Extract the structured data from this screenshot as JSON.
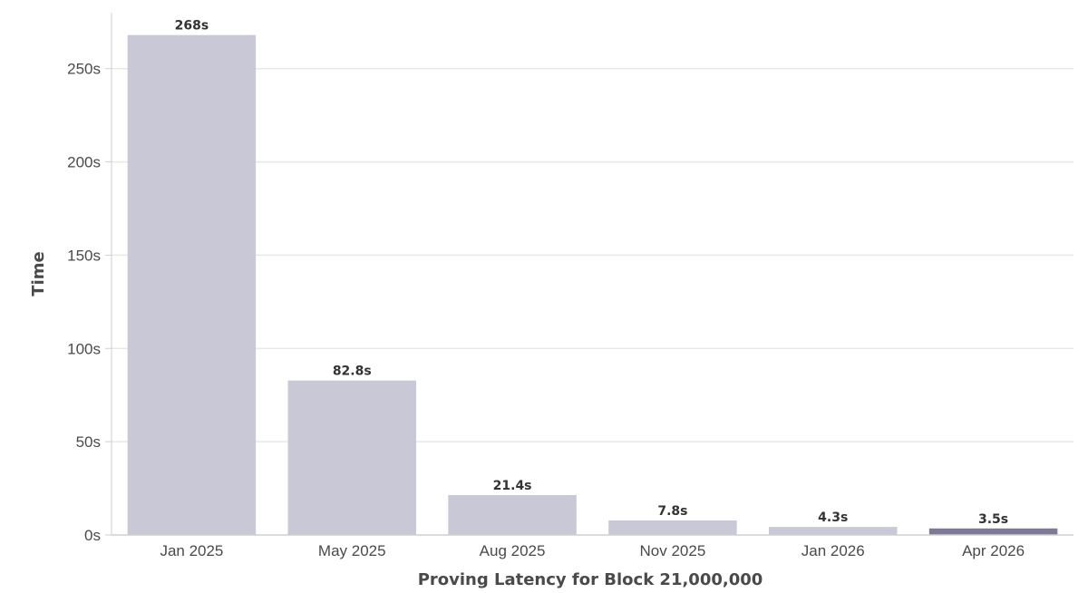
{
  "chart_data": {
    "type": "bar",
    "categories": [
      "Jan 2025",
      "May 2025",
      "Aug 2025",
      "Nov 2025",
      "Jan 2026",
      "Apr 2026"
    ],
    "values": [
      268,
      82.8,
      21.4,
      7.8,
      4.3,
      3.5
    ],
    "value_labels": [
      "268s",
      "82.8s",
      "21.4s",
      "7.8s",
      "4.3s",
      "3.5s"
    ],
    "title": "",
    "xlabel": "Proving Latency for Block 21,000,000",
    "ylabel": "Time",
    "ylim": [
      0,
      280
    ],
    "yticks": [
      0,
      50,
      100,
      150,
      200,
      250
    ],
    "ytick_labels": [
      "0s",
      "50s",
      "100s",
      "150s",
      "200s",
      "250s"
    ],
    "grid": true,
    "colors": {
      "bar": "#c9c8d6",
      "highlight_bar": "#7d7a98",
      "grid": "#e8e8e8",
      "axis": "#cfcfcf"
    },
    "highlight_index": 5
  }
}
